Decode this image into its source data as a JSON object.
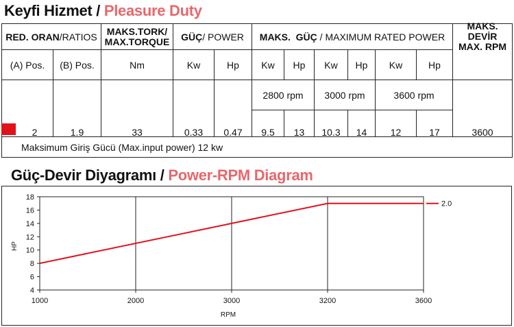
{
  "section1": {
    "title_tr": "Keyfi Hizmet",
    "sep": " / ",
    "title_en": "Pleasure Duty"
  },
  "section2": {
    "title_tr": "Güç-Devir Diyagramı",
    "sep": " / ",
    "title_en": "Power-RPM Diagram"
  },
  "table": {
    "h_ratio_a": "RED. ORAN",
    "h_ratio_b": "/RATIOS",
    "h_torque_1": "MAKS.TORK/",
    "h_torque_2": "MAX.TORQUE",
    "h_power_a": "GÜÇ",
    "h_power_b": " / POWER",
    "h_maxpower_a": "MAKS.  GÜÇ",
    "h_maxpower_b": " / MAXIMUM RATED POWER",
    "h_rpm_1": "MAKS. DEVİR",
    "h_rpm_2": "MAX. RPM",
    "sub": {
      "pos_a": "(A) Pos.",
      "pos_b": "(B) Pos.",
      "nm": "Nm",
      "kw1": "Kw",
      "hp1": "Hp",
      "kw2": "Kw",
      "hp2": "Hp",
      "kw3": "Kw",
      "hp3": "Hp",
      "kw4": "Kw",
      "hp4": "Hp"
    },
    "rpm_2800": "2800 rpm",
    "rpm_3000": "3000 rpm",
    "rpm_3600": "3600 rpm",
    "row": {
      "pos_a": "2",
      "pos_b": "1.9",
      "torque": "33",
      "kw": "0.33",
      "hp": "0.47",
      "kw_2800": "9.5",
      "hp_2800": "13",
      "kw_3000": "10.3",
      "hp_3000": "14",
      "kw_3600": "12",
      "hp_3600": "17",
      "max_rpm": "3600"
    },
    "marker_color": "#e3101b",
    "footer": "Maksimum Giriş Gücü (Max.input power) 12 kw"
  },
  "chart_data": {
    "type": "line",
    "xlabel": "RPM",
    "ylabel": "HP",
    "xlim": [
      1000,
      3600
    ],
    "ylim": [
      4,
      18
    ],
    "xticks": [
      1000,
      2000,
      3000,
      3200,
      3600
    ],
    "yticks": [
      4,
      6,
      8,
      10,
      12,
      14,
      16,
      18
    ],
    "grid": "vertical",
    "series": [
      {
        "name": "2.0",
        "color": "#e3101b",
        "x": [
          1000,
          3200,
          3600
        ],
        "y": [
          8,
          17,
          17
        ]
      }
    ]
  }
}
